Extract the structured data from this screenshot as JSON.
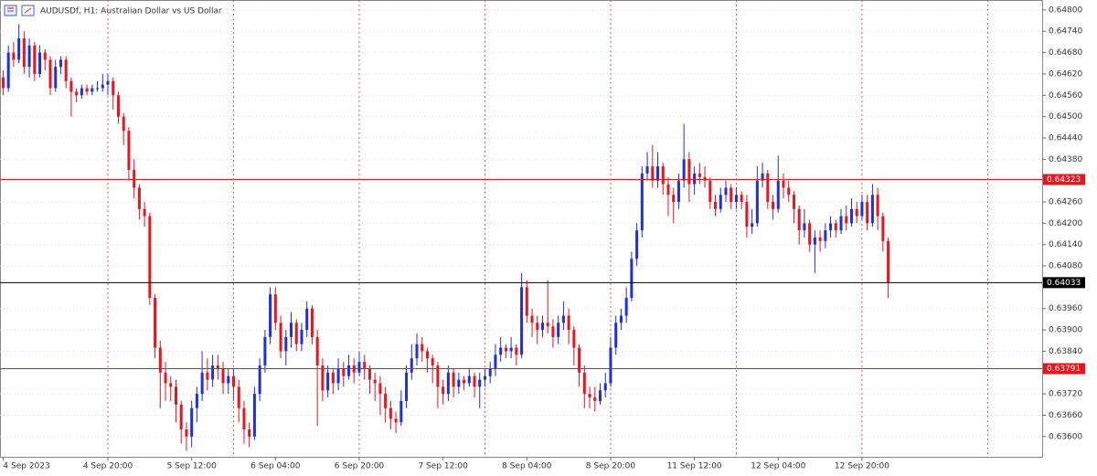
{
  "chart_data": {
    "type": "candlestick",
    "title": "AUDUSDf, H1:  Australian Dollar vs US Dollar",
    "bull_color": "#1f2fe0",
    "bear_color": "#e8141e",
    "xlim": [
      -0.6,
      198.4
    ],
    "ylim": [
      0.63543,
      0.64828
    ],
    "yticks": [
      {
        "value": 0.648,
        "label": "0.64800"
      },
      {
        "value": 0.6474,
        "label": "0.64740"
      },
      {
        "value": 0.6468,
        "label": "0.64680"
      },
      {
        "value": 0.6462,
        "label": "0.64620"
      },
      {
        "value": 0.6456,
        "label": "0.64560"
      },
      {
        "value": 0.645,
        "label": "0.64500"
      },
      {
        "value": 0.6444,
        "label": "0.64440"
      },
      {
        "value": 0.6438,
        "label": "0.64380"
      },
      {
        "value": 0.6426,
        "label": "0.64260"
      },
      {
        "value": 0.642,
        "label": "0.64200"
      },
      {
        "value": 0.6414,
        "label": "0.64140"
      },
      {
        "value": 0.6408,
        "label": "0.64080"
      },
      {
        "value": 0.6396,
        "label": "0.63960"
      },
      {
        "value": 0.639,
        "label": "0.63900"
      },
      {
        "value": 0.6384,
        "label": "0.63840"
      },
      {
        "value": 0.6372,
        "label": "0.63720"
      },
      {
        "value": 0.6366,
        "label": "0.63660"
      },
      {
        "value": 0.636,
        "label": "0.63600"
      }
    ],
    "xticks": [
      {
        "value": 0,
        "label": "4 Sep 2023"
      },
      {
        "value": 20,
        "label": "4 Sep 20:00"
      },
      {
        "value": 36,
        "label": "5 Sep 12:00"
      },
      {
        "value": 52,
        "label": "6 Sep 04:00"
      },
      {
        "value": 68,
        "label": "6 Sep 20:00"
      },
      {
        "value": 84,
        "label": "7 Sep 12:00"
      },
      {
        "value": 100,
        "label": "8 Sep 04:00"
      },
      {
        "value": 116,
        "label": "8 Sep 20:00"
      },
      {
        "value": 132,
        "label": "11 Sep 12:00"
      },
      {
        "value": 148,
        "label": "12 Sep 04:00"
      },
      {
        "value": 164,
        "label": "12 Sep 20:00"
      }
    ],
    "xgrid": [
      20,
      44,
      68,
      92,
      116,
      140,
      164,
      188
    ],
    "levels": [
      {
        "value": 0.64323,
        "color": "#e8141e"
      },
      {
        "value": 0.63791,
        "color": "#e8141e"
      }
    ],
    "current_price": {
      "value": 0.64033,
      "color": "#000000"
    },
    "candles": [
      [
        0.6461,
        0.6463,
        0.6456,
        0.6458
      ],
      [
        0.6458,
        0.647,
        0.6457,
        0.6468
      ],
      [
        0.6468,
        0.6471,
        0.6464,
        0.6466
      ],
      [
        0.6466,
        0.6476,
        0.6465,
        0.6472
      ],
      [
        0.6472,
        0.6474,
        0.6462,
        0.6464
      ],
      [
        0.6464,
        0.6472,
        0.6461,
        0.647
      ],
      [
        0.647,
        0.6471,
        0.646,
        0.6462
      ],
      [
        0.6462,
        0.647,
        0.6461,
        0.6468
      ],
      [
        0.6468,
        0.6469,
        0.6463,
        0.6466
      ],
      [
        0.6466,
        0.6467,
        0.6456,
        0.6458
      ],
      [
        0.6458,
        0.6466,
        0.6457,
        0.6464
      ],
      [
        0.6464,
        0.6467,
        0.6462,
        0.6466
      ],
      [
        0.6466,
        0.6467,
        0.6458,
        0.646
      ],
      [
        0.646,
        0.6461,
        0.645,
        0.6457
      ],
      [
        0.6457,
        0.6458,
        0.6454,
        0.6456
      ],
      [
        0.6456,
        0.6459,
        0.6455,
        0.6458
      ],
      [
        0.6458,
        0.6459,
        0.6456,
        0.6457
      ],
      [
        0.6457,
        0.6459,
        0.6456,
        0.6458
      ],
      [
        0.6458,
        0.646,
        0.6457,
        0.6458
      ],
      [
        0.6458,
        0.6462,
        0.6457,
        0.6459
      ],
      [
        0.6459,
        0.6462,
        0.6456,
        0.646
      ],
      [
        0.646,
        0.6461,
        0.6452,
        0.6456
      ],
      [
        0.6456,
        0.6457,
        0.6448,
        0.645
      ],
      [
        0.645,
        0.6451,
        0.6442,
        0.6446
      ],
      [
        0.6446,
        0.6447,
        0.6432,
        0.6435
      ],
      [
        0.6435,
        0.6438,
        0.6427,
        0.643
      ],
      [
        0.643,
        0.6431,
        0.6421,
        0.6424
      ],
      [
        0.6424,
        0.6426,
        0.6419,
        0.6422
      ],
      [
        0.6422,
        0.6423,
        0.6397,
        0.6399
      ],
      [
        0.6399,
        0.64,
        0.6382,
        0.6385
      ],
      [
        0.6385,
        0.6387,
        0.6368,
        0.6378
      ],
      [
        0.6378,
        0.6381,
        0.637,
        0.6375
      ],
      [
        0.6375,
        0.6377,
        0.637,
        0.6374
      ],
      [
        0.6374,
        0.6376,
        0.6364,
        0.6369
      ],
      [
        0.6369,
        0.637,
        0.6358,
        0.6362
      ],
      [
        0.6362,
        0.6364,
        0.6356,
        0.636
      ],
      [
        0.636,
        0.637,
        0.6357,
        0.6368
      ],
      [
        0.6368,
        0.6374,
        0.6364,
        0.6372
      ],
      [
        0.6372,
        0.6384,
        0.637,
        0.6378
      ],
      [
        0.6378,
        0.6382,
        0.6373,
        0.6376
      ],
      [
        0.6376,
        0.6383,
        0.6374,
        0.638
      ],
      [
        0.638,
        0.6383,
        0.6376,
        0.6379
      ],
      [
        0.6379,
        0.6381,
        0.6372,
        0.6375
      ],
      [
        0.6375,
        0.6379,
        0.6372,
        0.6377
      ],
      [
        0.6377,
        0.6379,
        0.637,
        0.6374
      ],
      [
        0.6374,
        0.6376,
        0.6364,
        0.6368
      ],
      [
        0.6368,
        0.637,
        0.6358,
        0.6362
      ],
      [
        0.6362,
        0.6364,
        0.6357,
        0.636
      ],
      [
        0.636,
        0.6374,
        0.6359,
        0.6372
      ],
      [
        0.6372,
        0.6382,
        0.637,
        0.638
      ],
      [
        0.638,
        0.639,
        0.6378,
        0.6388
      ],
      [
        0.6388,
        0.6402,
        0.6386,
        0.64
      ],
      [
        0.64,
        0.6402,
        0.639,
        0.6392
      ],
      [
        0.6392,
        0.6394,
        0.6382,
        0.6384
      ],
      [
        0.6384,
        0.639,
        0.638,
        0.6388
      ],
      [
        0.6388,
        0.6395,
        0.6385,
        0.6392
      ],
      [
        0.6392,
        0.6393,
        0.6384,
        0.6386
      ],
      [
        0.6386,
        0.6392,
        0.6384,
        0.639
      ],
      [
        0.639,
        0.6398,
        0.6388,
        0.6396
      ],
      [
        0.6396,
        0.6397,
        0.6386,
        0.6388
      ],
      [
        0.6388,
        0.639,
        0.6363,
        0.638
      ],
      [
        0.638,
        0.6382,
        0.637,
        0.6373
      ],
      [
        0.6373,
        0.638,
        0.6371,
        0.6378
      ],
      [
        0.6378,
        0.6379,
        0.6372,
        0.6375
      ],
      [
        0.6375,
        0.6382,
        0.6373,
        0.6379
      ],
      [
        0.6379,
        0.6381,
        0.6374,
        0.6377
      ],
      [
        0.6377,
        0.6383,
        0.6376,
        0.638
      ],
      [
        0.638,
        0.6382,
        0.6375,
        0.6378
      ],
      [
        0.6378,
        0.6384,
        0.6377,
        0.6381
      ],
      [
        0.6381,
        0.6383,
        0.6376,
        0.6379
      ],
      [
        0.6379,
        0.638,
        0.6372,
        0.6376
      ],
      [
        0.6376,
        0.6378,
        0.637,
        0.6375
      ],
      [
        0.6375,
        0.6377,
        0.6366,
        0.6372
      ],
      [
        0.6372,
        0.6374,
        0.6364,
        0.6368
      ],
      [
        0.6368,
        0.637,
        0.6362,
        0.6365
      ],
      [
        0.6365,
        0.6367,
        0.6361,
        0.6364
      ],
      [
        0.6364,
        0.6373,
        0.6363,
        0.637
      ],
      [
        0.637,
        0.638,
        0.6368,
        0.6378
      ],
      [
        0.6378,
        0.6386,
        0.6376,
        0.6382
      ],
      [
        0.6382,
        0.6389,
        0.638,
        0.6386
      ],
      [
        0.6386,
        0.6388,
        0.6381,
        0.6384
      ],
      [
        0.6384,
        0.6385,
        0.6378,
        0.6382
      ],
      [
        0.6382,
        0.6383,
        0.6375,
        0.638
      ],
      [
        0.638,
        0.6381,
        0.6368,
        0.6374
      ],
      [
        0.6374,
        0.6376,
        0.6369,
        0.6372
      ],
      [
        0.6372,
        0.638,
        0.637,
        0.6378
      ],
      [
        0.6378,
        0.6379,
        0.6371,
        0.6374
      ],
      [
        0.6374,
        0.6378,
        0.6372,
        0.6376
      ],
      [
        0.6376,
        0.6377,
        0.6373,
        0.6375
      ],
      [
        0.6375,
        0.6379,
        0.6374,
        0.6377
      ],
      [
        0.6377,
        0.6378,
        0.6371,
        0.6374
      ],
      [
        0.6374,
        0.6378,
        0.6368,
        0.6376
      ],
      [
        0.6376,
        0.6379,
        0.6374,
        0.6377
      ],
      [
        0.6377,
        0.6381,
        0.6375,
        0.6379
      ],
      [
        0.6379,
        0.6386,
        0.6377,
        0.6383
      ],
      [
        0.6383,
        0.6388,
        0.6381,
        0.6385
      ],
      [
        0.6385,
        0.6386,
        0.6382,
        0.6384
      ],
      [
        0.6384,
        0.6388,
        0.6382,
        0.6385
      ],
      [
        0.6385,
        0.6386,
        0.638,
        0.6383
      ],
      [
        0.6383,
        0.6406,
        0.6382,
        0.6402
      ],
      [
        0.6402,
        0.6404,
        0.6392,
        0.6394
      ],
      [
        0.6394,
        0.6396,
        0.6388,
        0.6392
      ],
      [
        0.6392,
        0.6394,
        0.6386,
        0.639
      ],
      [
        0.639,
        0.6394,
        0.6388,
        0.6392
      ],
      [
        0.6392,
        0.6404,
        0.6389,
        0.6391
      ],
      [
        0.6391,
        0.6393,
        0.6385,
        0.6388
      ],
      [
        0.6388,
        0.6394,
        0.6386,
        0.6392
      ],
      [
        0.6392,
        0.6398,
        0.639,
        0.6394
      ],
      [
        0.6394,
        0.6396,
        0.6386,
        0.639
      ],
      [
        0.639,
        0.6391,
        0.638,
        0.6385
      ],
      [
        0.6385,
        0.6386,
        0.6374,
        0.6378
      ],
      [
        0.6378,
        0.638,
        0.6368,
        0.6372
      ],
      [
        0.6372,
        0.6374,
        0.6368,
        0.6371
      ],
      [
        0.6371,
        0.6374,
        0.6367,
        0.637
      ],
      [
        0.637,
        0.6375,
        0.6369,
        0.6373
      ],
      [
        0.6373,
        0.6378,
        0.6371,
        0.6375
      ],
      [
        0.6375,
        0.6388,
        0.6374,
        0.6385
      ],
      [
        0.6385,
        0.6394,
        0.6383,
        0.6392
      ],
      [
        0.6392,
        0.6396,
        0.639,
        0.6394
      ],
      [
        0.6394,
        0.6402,
        0.6392,
        0.6399
      ],
      [
        0.6399,
        0.6412,
        0.6398,
        0.641
      ],
      [
        0.641,
        0.642,
        0.6408,
        0.6418
      ],
      [
        0.6418,
        0.6436,
        0.6416,
        0.6434
      ],
      [
        0.6434,
        0.644,
        0.6432,
        0.6436
      ],
      [
        0.6436,
        0.6442,
        0.643,
        0.6432
      ],
      [
        0.6432,
        0.644,
        0.643,
        0.6436
      ],
      [
        0.6436,
        0.6437,
        0.6428,
        0.6431
      ],
      [
        0.6431,
        0.6433,
        0.6422,
        0.6428
      ],
      [
        0.6428,
        0.643,
        0.642,
        0.6426
      ],
      [
        0.6426,
        0.6434,
        0.6424,
        0.6432
      ],
      [
        0.6432,
        0.6448,
        0.643,
        0.6438
      ],
      [
        0.6438,
        0.644,
        0.6426,
        0.6431
      ],
      [
        0.6431,
        0.6436,
        0.6428,
        0.6434
      ],
      [
        0.6434,
        0.6437,
        0.6431,
        0.6433
      ],
      [
        0.6433,
        0.6436,
        0.643,
        0.6432
      ],
      [
        0.6432,
        0.6433,
        0.6424,
        0.6426
      ],
      [
        0.6426,
        0.6428,
        0.6422,
        0.6424
      ],
      [
        0.6424,
        0.643,
        0.6423,
        0.6428
      ],
      [
        0.6428,
        0.6432,
        0.6426,
        0.643
      ],
      [
        0.643,
        0.6431,
        0.6424,
        0.6426
      ],
      [
        0.6426,
        0.643,
        0.6424,
        0.6428
      ],
      [
        0.6428,
        0.6429,
        0.6424,
        0.6426
      ],
      [
        0.6426,
        0.6428,
        0.6416,
        0.6419
      ],
      [
        0.6419,
        0.6424,
        0.6417,
        0.642
      ],
      [
        0.642,
        0.6436,
        0.6419,
        0.6432
      ],
      [
        0.6432,
        0.6437,
        0.643,
        0.6434
      ],
      [
        0.6434,
        0.6435,
        0.6424,
        0.6426
      ],
      [
        0.6426,
        0.6428,
        0.6421,
        0.6424
      ],
      [
        0.6424,
        0.6439,
        0.6423,
        0.6432
      ],
      [
        0.6432,
        0.6434,
        0.6427,
        0.643
      ],
      [
        0.643,
        0.6432,
        0.6426,
        0.6428
      ],
      [
        0.6428,
        0.6429,
        0.642,
        0.6424
      ],
      [
        0.6424,
        0.6425,
        0.6414,
        0.6418
      ],
      [
        0.6418,
        0.6424,
        0.6416,
        0.642
      ],
      [
        0.642,
        0.6421,
        0.6412,
        0.6414
      ],
      [
        0.6414,
        0.6418,
        0.6406,
        0.6416
      ],
      [
        0.6416,
        0.6418,
        0.6412,
        0.6415
      ],
      [
        0.6415,
        0.642,
        0.6413,
        0.6418
      ],
      [
        0.6418,
        0.6422,
        0.6416,
        0.642
      ],
      [
        0.642,
        0.6421,
        0.6416,
        0.6418
      ],
      [
        0.6418,
        0.6424,
        0.6417,
        0.6422
      ],
      [
        0.6422,
        0.6425,
        0.6418,
        0.642
      ],
      [
        0.642,
        0.6427,
        0.6419,
        0.6424
      ],
      [
        0.6424,
        0.6426,
        0.642,
        0.6422
      ],
      [
        0.6422,
        0.6428,
        0.6421,
        0.6426
      ],
      [
        0.6426,
        0.6428,
        0.6418,
        0.642
      ],
      [
        0.642,
        0.6431,
        0.6419,
        0.6428
      ],
      [
        0.6428,
        0.643,
        0.6418,
        0.6422
      ],
      [
        0.6422,
        0.6423,
        0.6412,
        0.6415
      ],
      [
        0.6415,
        0.6416,
        0.6399,
        0.64033
      ]
    ]
  }
}
